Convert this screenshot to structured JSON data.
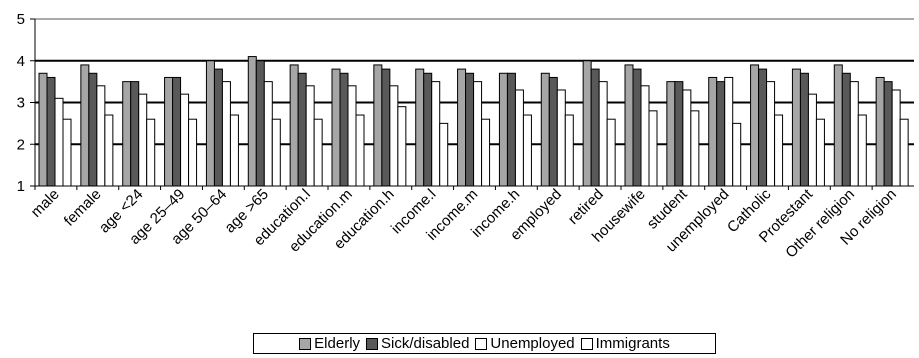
{
  "chart_data": {
    "type": "bar",
    "ylim": [
      1,
      5
    ],
    "yticks": [
      "1",
      "2",
      "3",
      "4",
      "5"
    ],
    "grid": true,
    "legend_position": "bottom",
    "categories": [
      "male",
      "female",
      "age <24",
      "age 25–49",
      "age 50–64",
      "age >65",
      "education.l",
      "education.m",
      "education.h",
      "income.l",
      "income.m",
      "income.h",
      "employed",
      "retired",
      "housewife",
      "student",
      "unemployed",
      "Catholic",
      "Protestant",
      "Other religion",
      "No religion"
    ],
    "series": [
      {
        "name": "Elderly",
        "color": "#a6a6a6",
        "values": [
          3.7,
          3.9,
          3.5,
          3.6,
          4.0,
          4.1,
          3.9,
          3.8,
          3.9,
          3.8,
          3.8,
          3.7,
          3.7,
          4.0,
          3.9,
          3.5,
          3.6,
          3.9,
          3.8,
          3.9,
          3.6
        ]
      },
      {
        "name": "Sick/disabled",
        "color": "#595959",
        "values": [
          3.6,
          3.7,
          3.5,
          3.6,
          3.8,
          4.0,
          3.7,
          3.7,
          3.8,
          3.7,
          3.7,
          3.7,
          3.6,
          3.8,
          3.8,
          3.5,
          3.5,
          3.8,
          3.7,
          3.7,
          3.5
        ]
      },
      {
        "name": "Unemployed",
        "color": "#ffffff",
        "values": [
          3.1,
          3.4,
          3.2,
          3.2,
          3.5,
          3.5,
          3.4,
          3.4,
          3.4,
          3.5,
          3.5,
          3.3,
          3.3,
          3.5,
          3.4,
          3.3,
          3.6,
          3.5,
          3.2,
          3.5,
          3.3
        ]
      },
      {
        "name": "Immigrants",
        "color": "#ffffff",
        "values": [
          2.6,
          2.7,
          2.6,
          2.6,
          2.7,
          2.6,
          2.6,
          2.7,
          2.9,
          2.5,
          2.6,
          2.7,
          2.7,
          2.6,
          2.8,
          2.8,
          2.5,
          2.7,
          2.6,
          2.7,
          2.6
        ]
      }
    ]
  }
}
